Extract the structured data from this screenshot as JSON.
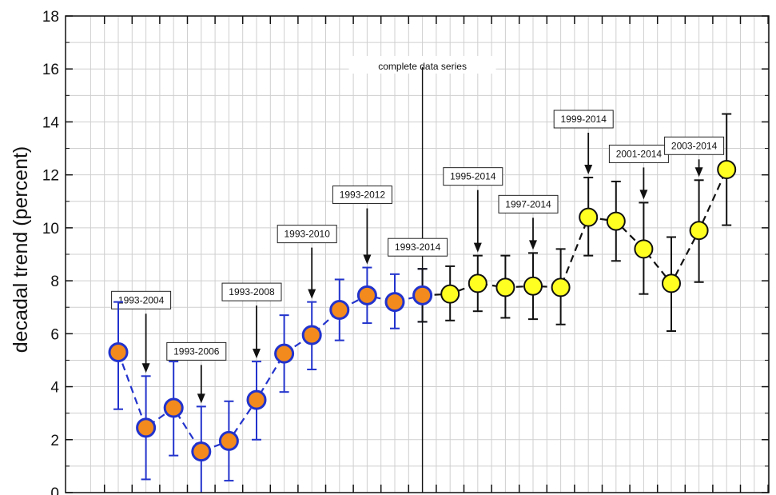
{
  "chart_data": {
    "type": "scatter",
    "ylabel": "decadal trend (percent)",
    "ylim": [
      0,
      18
    ],
    "yticks": [
      0,
      2,
      4,
      6,
      8,
      10,
      12,
      14,
      16,
      18
    ],
    "grid": true,
    "divider_label": "complete data series",
    "colors": {
      "early_marker": "#f28a1e",
      "early_edge": "#2233cc",
      "early_line": "#2233cc",
      "late_marker": "#ffff22",
      "late_edge": "#111111",
      "late_line": "#111111"
    },
    "series": [
      {
        "values": [
          5.3,
          2.45,
          3.2,
          1.55,
          1.95,
          3.5,
          5.25,
          5.95,
          6.9,
          7.45,
          7.2,
          7.45
        ],
        "err_low": [
          3.15,
          0.5,
          1.4,
          0.0,
          0.45,
          2.0,
          3.8,
          4.65,
          5.75,
          6.4,
          6.2,
          6.45
        ],
        "err_high": [
          7.2,
          4.4,
          4.95,
          3.25,
          3.45,
          4.95,
          6.7,
          7.2,
          8.05,
          8.5,
          8.25,
          8.45
        ]
      },
      {
        "values": [
          7.45,
          7.5,
          7.9,
          7.75,
          7.8,
          7.75,
          10.4,
          10.25,
          9.2,
          7.9,
          9.9,
          12.2
        ],
        "err_low": [
          6.45,
          6.5,
          6.85,
          6.6,
          6.55,
          6.35,
          8.95,
          8.75,
          7.5,
          6.1,
          7.95,
          10.1
        ],
        "err_high": [
          8.45,
          8.55,
          8.95,
          8.95,
          9.05,
          9.2,
          11.9,
          11.75,
          10.95,
          9.65,
          11.8,
          14.3
        ]
      }
    ],
    "annotations": [
      {
        "label": "1993-2004",
        "point": 1
      },
      {
        "label": "1993-2006",
        "point": 3
      },
      {
        "label": "1993-2008",
        "point": 5
      },
      {
        "label": "1993-2010",
        "point": 7
      },
      {
        "label": "1993-2012",
        "point": 9
      },
      {
        "label": "1993-2014",
        "point": 11
      },
      {
        "label": "1995-2014",
        "point": 13
      },
      {
        "label": "1997-2014",
        "point": 15
      },
      {
        "label": "1999-2014",
        "point": 17
      },
      {
        "label": "2001-2014",
        "point": 19
      },
      {
        "label": "2003-2014",
        "point": 21
      }
    ]
  }
}
